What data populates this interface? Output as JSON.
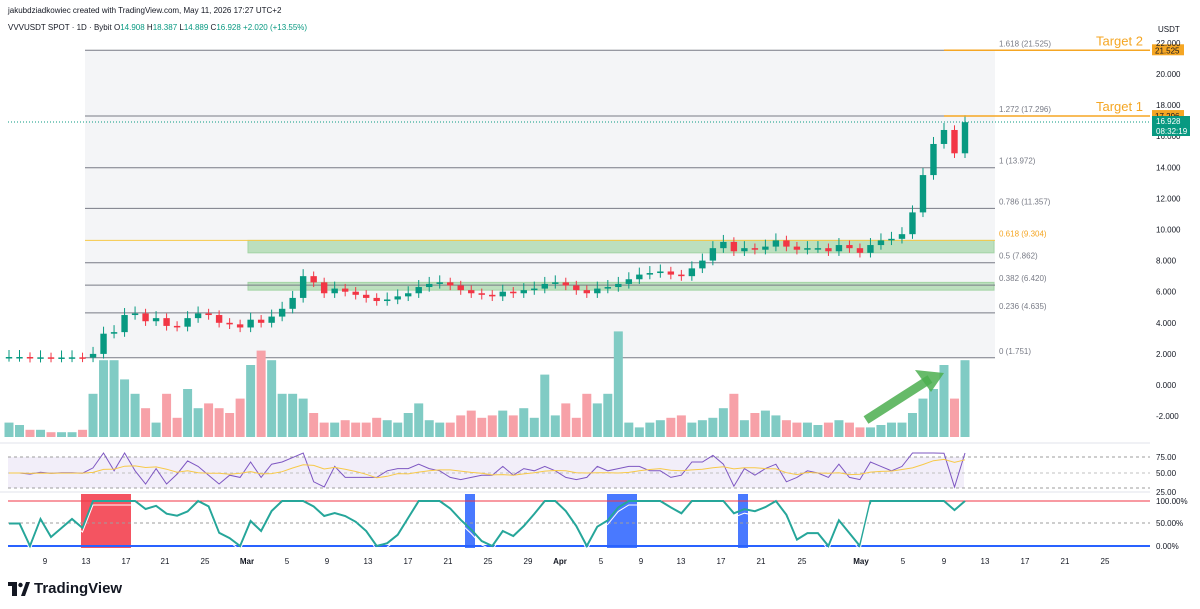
{
  "credit": "jakubdziadkowiec created with TradingView.com, May 11, 2026 17:27 UTC+2",
  "symbol": {
    "title": "VVVUSDT SPOT · 1D · Bybit",
    "o_lbl": "O",
    "o": "14.908",
    "h_lbl": "H",
    "h": "18.387",
    "l_lbl": "L",
    "l": "14.889",
    "c_lbl": "C",
    "c": "16.928",
    "change": "+2.020 (+13.55%)"
  },
  "brand": "TradingView",
  "chart_data": {
    "type": "candlestick",
    "currency": "USDT",
    "y_ticks": [
      "22.000",
      "20.000",
      "18.000",
      "16.000",
      "14.000",
      "12.000",
      "10.000",
      "8.000",
      "6.000",
      "4.000",
      "2.000",
      "0.000",
      "-2.000"
    ],
    "x_ticks": [
      "9",
      "13",
      "17",
      "21",
      "25",
      "Mar",
      "5",
      "9",
      "13",
      "17",
      "21",
      "25",
      "29",
      "Apr",
      "5",
      "9",
      "13",
      "17",
      "21",
      "25",
      "May",
      "5",
      "9",
      "13",
      "17",
      "21",
      "25"
    ],
    "last_price": "16.928",
    "countdown": "08:32:19",
    "fib_levels": [
      {
        "label": "1.618 (21.525)",
        "value": 21.525
      },
      {
        "label": "1.272 (17.296)",
        "value": 17.296
      },
      {
        "label": "1 (13.972)",
        "value": 13.972
      },
      {
        "label": "0.786 (11.357)",
        "value": 11.357
      },
      {
        "label": "0.618 (9.304)",
        "value": 9.304
      },
      {
        "label": "0.5 (7.862)",
        "value": 7.862
      },
      {
        "label": "0.382 (6.420)",
        "value": 6.42
      },
      {
        "label": "0.236 (4.635)",
        "value": 4.635
      },
      {
        "label": "0 (1.751)",
        "value": 1.751
      }
    ],
    "targets": [
      {
        "label": "Target 2",
        "value": 21.525,
        "price_tag": "21.525"
      },
      {
        "label": "Target 1",
        "value": 17.296,
        "price_tag": "17.296"
      }
    ],
    "zones": [
      {
        "from": 8.5,
        "to": 9.3
      },
      {
        "from": 6.1,
        "to": 6.6
      }
    ],
    "candles_close": [
      1.8,
      1.8,
      1.75,
      1.78,
      1.76,
      1.77,
      1.78,
      1.77,
      2.0,
      3.3,
      3.4,
      4.5,
      4.6,
      4.1,
      4.3,
      3.8,
      3.75,
      4.3,
      4.6,
      4.5,
      4.0,
      3.9,
      3.7,
      4.2,
      4.0,
      4.4,
      4.9,
      5.6,
      7.0,
      6.6,
      5.9,
      6.2,
      6.0,
      5.8,
      5.6,
      5.4,
      5.5,
      5.7,
      5.9,
      6.3,
      6.5,
      6.6,
      6.4,
      6.1,
      5.9,
      5.8,
      5.7,
      6.0,
      5.9,
      6.1,
      6.2,
      6.5,
      6.6,
      6.4,
      6.1,
      5.9,
      6.2,
      6.3,
      6.5,
      6.8,
      7.1,
      7.2,
      7.3,
      7.1,
      7.0,
      7.5,
      8.0,
      8.8,
      9.2,
      8.6,
      8.8,
      8.7,
      8.9,
      9.3,
      8.9,
      8.7,
      8.8,
      8.8,
      8.6,
      9.0,
      8.8,
      8.5,
      9.0,
      9.3,
      9.4,
      9.7,
      11.1,
      13.5,
      15.5,
      16.4,
      14.9,
      16.9
    ],
    "volume": [
      0.3,
      0.25,
      0.15,
      0.15,
      0.1,
      0.1,
      0.1,
      0.15,
      0.9,
      1.6,
      1.6,
      1.2,
      0.9,
      0.6,
      0.3,
      0.9,
      0.4,
      1.0,
      0.6,
      0.7,
      0.6,
      0.5,
      0.8,
      1.5,
      1.8,
      1.6,
      0.9,
      0.9,
      0.8,
      0.5,
      0.3,
      0.3,
      0.35,
      0.3,
      0.3,
      0.4,
      0.35,
      0.3,
      0.5,
      0.7,
      0.35,
      0.3,
      0.3,
      0.45,
      0.55,
      0.4,
      0.45,
      0.55,
      0.45,
      0.6,
      0.4,
      1.3,
      0.45,
      0.7,
      0.4,
      0.9,
      0.7,
      0.9,
      2.2,
      0.3,
      0.2,
      0.3,
      0.35,
      0.4,
      0.45,
      0.3,
      0.35,
      0.4,
      0.6,
      0.9,
      0.35,
      0.5,
      0.55,
      0.45,
      0.35,
      0.3,
      0.3,
      0.25,
      0.3,
      0.35,
      0.3,
      0.2,
      0.2,
      0.25,
      0.3,
      0.3,
      0.5,
      0.8,
      1.0,
      1.5,
      0.8,
      1.6
    ],
    "rsi": {
      "ticks": [
        "75.00",
        "50.00",
        "25.00"
      ]
    },
    "stoch": {
      "ticks": [
        "100.00%",
        "50.00%",
        "0.00%"
      ]
    }
  }
}
